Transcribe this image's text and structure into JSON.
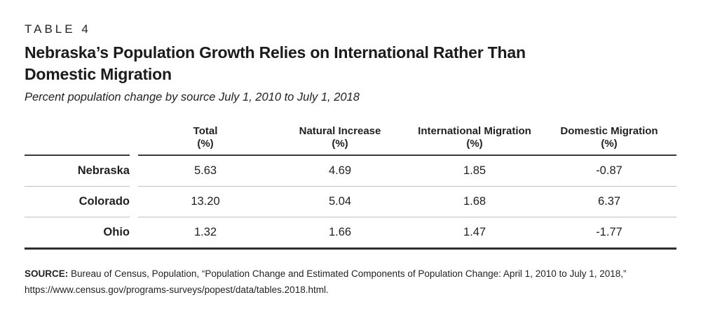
{
  "header": {
    "table_label": "TABLE 4",
    "title_line1": "Nebraska’s Population Growth Relies on International Rather Than",
    "title_line2": "Domestic Migration",
    "subtitle": "Percent population change by source July 1, 2010 to July 1, 2018"
  },
  "thead": {
    "cols": [
      {
        "line1": "Total",
        "line2": "(%)"
      },
      {
        "line1": "Natural Increase",
        "line2": "(%)"
      },
      {
        "line1": "International Migration",
        "line2": "(%)"
      },
      {
        "line1": "Domestic Migration",
        "line2": "(%)"
      }
    ]
  },
  "chart_data": {
    "type": "table",
    "title": "Nebraska’s Population Growth Relies on International Rather Than Domestic Migration",
    "subtitle": "Percent population change by source July 1, 2010 to July 1, 2018",
    "columns": [
      "",
      "Total (%)",
      "Natural Increase (%)",
      "International Migration (%)",
      "Domestic Migration (%)"
    ],
    "rows": [
      {
        "label": "Nebraska",
        "values": [
          "5.63",
          "4.69",
          "1.85",
          "-0.87"
        ]
      },
      {
        "label": "Colorado",
        "values": [
          "13.20",
          "5.04",
          "1.68",
          "6.37"
        ]
      },
      {
        "label": "Ohio",
        "values": [
          "1.32",
          "1.66",
          "1.47",
          "-1.77"
        ]
      }
    ]
  },
  "source": {
    "label": "SOURCE:",
    "line1": " Bureau of Census, Population, “Population Change and Estimated Components of Population Change: April 1, 2010 to July 1, 2018,”",
    "line2": "https://www.census.gov/programs-surveys/popest/data/tables.2018.html."
  },
  "colors": {
    "ink": "#231f20",
    "rule_dark": "#3a3a3a",
    "rule_light": "#bfbfbf",
    "background": "#ffffff"
  }
}
